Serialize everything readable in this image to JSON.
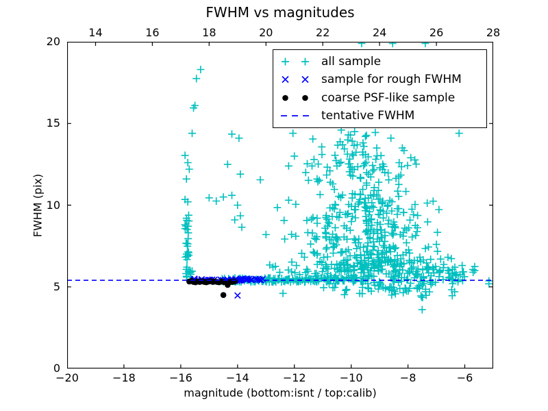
{
  "title": "FWHM vs magnitudes",
  "axes": {
    "xlabel": "magnitude (bottom:isnt / top:calib)",
    "ylabel": "FWHM (pix)",
    "x_bottom": {
      "min": -20,
      "max": -5,
      "ticks": [
        -20,
        -18,
        -16,
        -14,
        -12,
        -10,
        -8,
        -6
      ]
    },
    "x_top": {
      "min": 13,
      "max": 28,
      "ticks": [
        14,
        16,
        18,
        20,
        22,
        24,
        26,
        28
      ]
    },
    "y": {
      "min": 0,
      "max": 20,
      "ticks": [
        0,
        5,
        10,
        15,
        20
      ]
    }
  },
  "legend": {
    "items": [
      {
        "label": "all sample",
        "marker": "plus",
        "color": "#00bfbf"
      },
      {
        "label": "sample for rough FWHM",
        "marker": "x",
        "color": "#0000ff"
      },
      {
        "label": "coarse PSF-like sample",
        "marker": "dot",
        "color": "#000000"
      },
      {
        "label": "tentative FWHM",
        "marker": "dash",
        "color": "#0000ff"
      }
    ]
  },
  "colors": {
    "all_sample": "#00bfbf",
    "rough_fwhm": "#0000ff",
    "psf_like": "#000000",
    "tentative_line": "#0000ff",
    "axis": "#000000",
    "background": "#ffffff"
  },
  "chart_data": {
    "type": "scatter",
    "title": "FWHM vs magnitudes",
    "xlabel": "magnitude (bottom:isnt / top:calib)",
    "ylabel": "FWHM (pix)",
    "xlim": [
      -20,
      -5
    ],
    "x_top_lim": [
      13,
      28
    ],
    "ylim": [
      0,
      20
    ],
    "grid": false,
    "legend_position": "upper right",
    "tentative_fwhm": 5.4,
    "series": [
      {
        "name": "all sample",
        "marker": "plus",
        "color": "#00bfbf",
        "points": [
          [
            -15.3,
            18.3
          ],
          [
            -15.45,
            17.75
          ],
          [
            -15.5,
            16.1
          ],
          [
            -15.55,
            15.95
          ],
          [
            -15.6,
            14.4
          ],
          [
            -15.85,
            13.05
          ],
          [
            -15.75,
            12.6
          ],
          [
            -15.7,
            12.2
          ],
          [
            -15.8,
            11.6
          ],
          [
            -15.85,
            10.35
          ],
          [
            -15.75,
            10.2
          ],
          [
            -15.8,
            9.2
          ],
          [
            -14.2,
            14.35
          ],
          [
            -13.95,
            14.1
          ],
          [
            -14.35,
            12.5
          ],
          [
            -13.9,
            11.9
          ],
          [
            -13.2,
            11.55
          ],
          [
            -15.0,
            10.45
          ],
          [
            -14.75,
            10.25
          ],
          [
            -14.5,
            10.5
          ],
          [
            -14.2,
            10.6
          ],
          [
            -14.0,
            10.0
          ],
          [
            -13.9,
            9.35
          ],
          [
            -14.1,
            9.1
          ],
          [
            -13.85,
            8.65
          ],
          [
            -13.0,
            8.2
          ],
          [
            -12.6,
            9.85
          ],
          [
            -12.2,
            10.3
          ],
          [
            -12.05,
            14.4
          ],
          [
            -12.0,
            13.0
          ],
          [
            -12.2,
            12.4
          ],
          [
            -11.95,
            10.05
          ],
          [
            -11.6,
            12.0
          ],
          [
            -11.35,
            14.05
          ],
          [
            -11.2,
            11.6
          ],
          [
            -11.2,
            9.2
          ],
          [
            -11.95,
            8.1
          ],
          [
            -11.1,
            6.55
          ],
          [
            -10.65,
            11.3
          ],
          [
            -10.75,
            12.1
          ],
          [
            -10.5,
            12.4
          ],
          [
            -10.35,
            14.6
          ],
          [
            -10.3,
            13.7
          ],
          [
            -10.1,
            14.3
          ],
          [
            -9.9,
            13.65
          ],
          [
            -9.6,
            13.25
          ],
          [
            -9.5,
            14.2
          ],
          [
            -9.15,
            14.45
          ],
          [
            -8.6,
            14.1
          ],
          [
            -8.2,
            13.5
          ],
          [
            -7.9,
            12.9
          ],
          [
            -6.2,
            14.4
          ],
          [
            -7.0,
            7.6
          ],
          [
            -6.85,
            6.7
          ],
          [
            -6.35,
            6.2
          ],
          [
            -5.65,
            6.0
          ],
          [
            -6.9,
            5.9
          ],
          [
            -12.4,
            4.6
          ],
          [
            -9.7,
            4.6
          ],
          [
            -7.5,
            3.6
          ],
          [
            -9.63,
            19.9
          ],
          [
            -8.54,
            19.9
          ],
          [
            -7.39,
            19.9
          ]
        ],
        "clusters": [
          {
            "dist": "gauss",
            "cx": -9.0,
            "sx": 0.9,
            "cy": 6.2,
            "sy": 0.7,
            "n": 150
          },
          {
            "dist": "gauss",
            "cx": -9.05,
            "sx": 0.95,
            "cy": 8.4,
            "sy": 1.3,
            "n": 150
          },
          {
            "dist": "gauss",
            "cx": -9.4,
            "sx": 0.8,
            "cy": 11.0,
            "sy": 1.2,
            "n": 80
          },
          {
            "dist": "gauss",
            "cx": -9.55,
            "sx": 0.6,
            "cy": 13.1,
            "sy": 0.6,
            "n": 28
          },
          {
            "dist": "gauss",
            "cx": -7.15,
            "sx": 0.75,
            "cy": 5.7,
            "sy": 0.45,
            "n": 55
          },
          {
            "dist": "gauss",
            "cx": -6.4,
            "sx": 0.5,
            "cy": 5.6,
            "sy": 0.5,
            "n": 18
          },
          {
            "dist": "gauss",
            "cx": -8.4,
            "sx": 0.85,
            "cy": 4.85,
            "sy": 0.28,
            "n": 40
          },
          {
            "dist": "gauss",
            "cx": -10.6,
            "sx": 0.65,
            "cy": 6.1,
            "sy": 0.8,
            "n": 45
          },
          {
            "dist": "gauss",
            "cx": -10.7,
            "sx": 0.55,
            "cy": 7.8,
            "sy": 1.1,
            "n": 40
          },
          {
            "dist": "gauss",
            "cx": -10.5,
            "sx": 0.65,
            "cy": 12.3,
            "sy": 0.85,
            "n": 16
          },
          {
            "dist": "uniform",
            "cx": -15.78,
            "sx": 0.07,
            "cy": 7.7,
            "sy": 2.2,
            "n": 26
          },
          {
            "dist": "uniform",
            "cx": -15.7,
            "sx": 0.12,
            "cy": 5.75,
            "sy": 0.35,
            "n": 12
          },
          {
            "dist": "uniform",
            "cx": -12.9,
            "sx": 1.7,
            "cy": 5.42,
            "sy": 0.13,
            "n": 115
          },
          {
            "dist": "uniform",
            "cx": -12.1,
            "sx": 0.9,
            "cy": 6.05,
            "sy": 0.3,
            "n": 12
          },
          {
            "dist": "uniform",
            "cx": -10.3,
            "sx": 0.9,
            "cy": 5.45,
            "sy": 0.15,
            "n": 40
          }
        ]
      },
      {
        "name": "sample for rough FWHM",
        "marker": "x",
        "color": "#0000ff",
        "points": [
          [
            -14.0,
            4.47
          ]
        ],
        "clusters": [
          {
            "dist": "uniform",
            "cx": -14.3,
            "sx": 1.28,
            "cy": 5.43,
            "sy": 0.07,
            "n": 50
          }
        ]
      },
      {
        "name": "coarse PSF-like sample",
        "marker": "dot",
        "color": "#000000",
        "points": [
          [
            -15.7,
            5.33
          ],
          [
            -15.62,
            5.36
          ],
          [
            -15.55,
            5.3
          ],
          [
            -15.48,
            5.28
          ],
          [
            -15.4,
            5.33
          ],
          [
            -15.33,
            5.3
          ],
          [
            -15.25,
            5.34
          ],
          [
            -15.17,
            5.3
          ],
          [
            -15.1,
            5.28
          ],
          [
            -15.02,
            5.32
          ],
          [
            -14.95,
            5.35
          ],
          [
            -14.87,
            5.3
          ],
          [
            -14.8,
            5.33
          ],
          [
            -14.72,
            5.3
          ],
          [
            -14.65,
            5.28
          ],
          [
            -14.57,
            5.32
          ],
          [
            -14.5,
            5.3
          ],
          [
            -14.42,
            5.28
          ],
          [
            -14.35,
            5.12
          ],
          [
            -14.27,
            5.3
          ],
          [
            -14.18,
            5.3
          ],
          [
            -14.1,
            5.33
          ],
          [
            -14.5,
            4.5
          ]
        ],
        "clusters": []
      },
      {
        "name": "tentative FWHM",
        "marker": "dashed-line",
        "color": "#0000ff",
        "y": 5.4
      }
    ]
  }
}
